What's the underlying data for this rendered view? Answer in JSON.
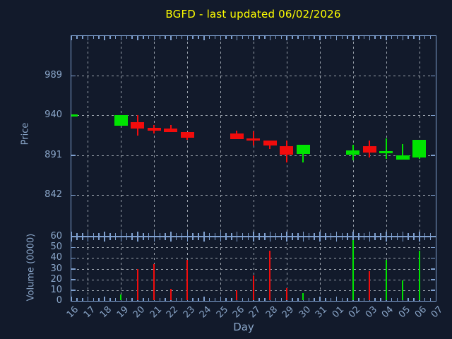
{
  "title": "BGFD - last updated 06/02/2026",
  "colors": {
    "background": "#121a2b",
    "title": "#ffff00",
    "axis_spine": "#7fa0cf",
    "axis_label": "#8aa6c9",
    "grid": "#9aa2ac",
    "up": "#00e400",
    "down": "#f20c0c"
  },
  "chart_data": {
    "type": "candlestick",
    "title": "BGFD - last updated 06/02/2026",
    "xlabel": "Day",
    "grid_on": true,
    "x_categories": [
      "16",
      "17",
      "18",
      "19",
      "20",
      "21",
      "22",
      "23",
      "24",
      "25",
      "26",
      "27",
      "28",
      "29",
      "30",
      "31",
      "01",
      "02",
      "03",
      "04",
      "05",
      "06",
      "07"
    ],
    "x_gridlines_every_other_from": "17",
    "price_panel": {
      "ylabel": "Price",
      "ylim": [
        792,
        1038.5
      ],
      "yticks": [
        842,
        891,
        940,
        989
      ],
      "candles": [
        {
          "day": "16",
          "open": 939,
          "high": 941.5,
          "low": 939,
          "close": 941.5,
          "direction": "up"
        },
        {
          "day": "19",
          "open": 927,
          "high": 940,
          "low": 927,
          "close": 940,
          "direction": "up"
        },
        {
          "day": "20",
          "open": 932,
          "high": 940,
          "low": 915,
          "close": 924,
          "direction": "down"
        },
        {
          "day": "21",
          "open": 925,
          "high": 928,
          "low": 917.5,
          "close": 921,
          "direction": "down"
        },
        {
          "day": "22",
          "open": 924,
          "high": 928,
          "low": 919.5,
          "close": 919.5,
          "direction": "down"
        },
        {
          "day": "23",
          "open": 920,
          "high": 920,
          "low": 910,
          "close": 913,
          "direction": "down"
        },
        {
          "day": "26",
          "open": 917.5,
          "high": 921.5,
          "low": 911,
          "close": 911,
          "direction": "down"
        },
        {
          "day": "27",
          "open": 911.5,
          "high": 920.5,
          "low": 903,
          "close": 909.5,
          "direction": "down"
        },
        {
          "day": "28",
          "open": 909,
          "high": 909,
          "low": 899,
          "close": 903.5,
          "direction": "down"
        },
        {
          "day": "29",
          "open": 902,
          "high": 909.5,
          "low": 882,
          "close": 892,
          "direction": "down"
        },
        {
          "day": "30",
          "open": 893,
          "high": 904,
          "low": 882,
          "close": 904,
          "direction": "up"
        },
        {
          "day": "02",
          "open": 892,
          "high": 904,
          "low": 884.5,
          "close": 897,
          "direction": "up"
        },
        {
          "day": "03",
          "open": 902,
          "high": 909,
          "low": 888,
          "close": 894.5,
          "direction": "down"
        },
        {
          "day": "04",
          "open": 893.5,
          "high": 912,
          "low": 886.5,
          "close": 896.5,
          "direction": "up"
        },
        {
          "day": "05",
          "open": 885.5,
          "high": 905,
          "low": 885.5,
          "close": 891,
          "direction": "up"
        },
        {
          "day": "06",
          "open": 888.5,
          "high": 910,
          "low": 886.5,
          "close": 910,
          "direction": "up"
        }
      ]
    },
    "volume_panel": {
      "ylabel": "Volume (0000)",
      "ylim": [
        0,
        60
      ],
      "yticks": [
        0,
        10,
        20,
        30,
        40,
        50,
        60
      ],
      "bars": [
        {
          "day": "19",
          "value": 6,
          "direction": "up"
        },
        {
          "day": "20",
          "value": 30,
          "direction": "down"
        },
        {
          "day": "21",
          "value": 34,
          "direction": "down"
        },
        {
          "day": "22",
          "value": 11,
          "direction": "down"
        },
        {
          "day": "23",
          "value": 38,
          "direction": "down"
        },
        {
          "day": "26",
          "value": 10,
          "direction": "down"
        },
        {
          "day": "27",
          "value": 24,
          "direction": "down"
        },
        {
          "day": "28",
          "value": 47,
          "direction": "down"
        },
        {
          "day": "29",
          "value": 12,
          "direction": "down"
        },
        {
          "day": "30",
          "value": 7,
          "direction": "up"
        },
        {
          "day": "02",
          "value": 57,
          "direction": "up"
        },
        {
          "day": "03",
          "value": 28,
          "direction": "down"
        },
        {
          "day": "04",
          "value": 38,
          "direction": "up"
        },
        {
          "day": "05",
          "value": 19,
          "direction": "up"
        },
        {
          "day": "06",
          "value": 47,
          "direction": "up"
        }
      ]
    }
  }
}
